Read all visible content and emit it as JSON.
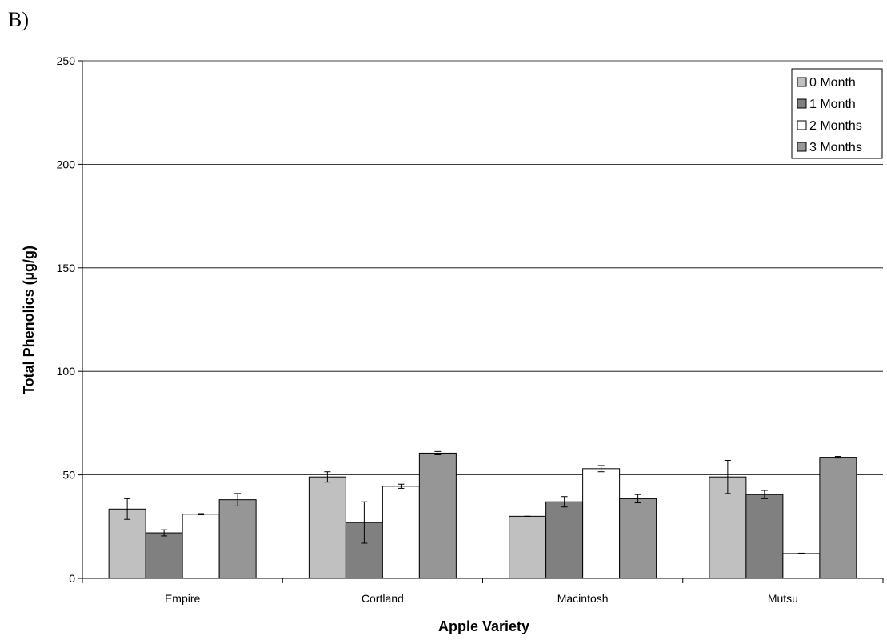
{
  "panel_label": "B)",
  "chart_data": {
    "type": "bar",
    "xlabel": "Apple Variety",
    "ylabel": "Total Phenolics (µg/g)",
    "ylim": [
      0,
      250
    ],
    "yticks": [
      0,
      50,
      100,
      150,
      200,
      250
    ],
    "grid": "horizontal",
    "legend_position": "top-right",
    "categories": [
      "Empire",
      "Cortland",
      "Macintosh",
      "Mutsu"
    ],
    "series": [
      {
        "name": "0 Month",
        "color": "#c0c0c0",
        "values": [
          33.5,
          49,
          30,
          49
        ],
        "errors": [
          5,
          2.5,
          0,
          8
        ]
      },
      {
        "name": "1 Month",
        "color": "#808080",
        "values": [
          22,
          27,
          37,
          40.5
        ],
        "errors": [
          1.5,
          10,
          2.5,
          2
        ]
      },
      {
        "name": "2 Months",
        "color": "#ffffff",
        "values": [
          31,
          44.5,
          53,
          12
        ],
        "errors": [
          0.3,
          1,
          1.5,
          0.2
        ]
      },
      {
        "name": "3 Months",
        "color": "#969696",
        "values": [
          38,
          60.5,
          38.5,
          58.5
        ],
        "errors": [
          3,
          0.8,
          2,
          0.4
        ]
      }
    ]
  }
}
